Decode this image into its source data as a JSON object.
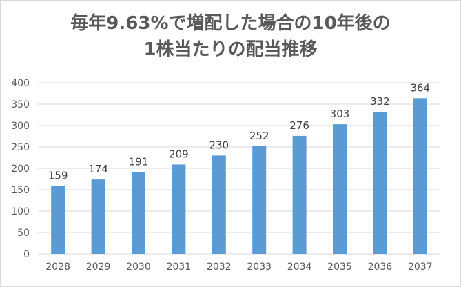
{
  "chart_data": {
    "type": "bar",
    "title_lines": [
      "毎年9.63%で増配した場合の10年後の",
      "1株当たりの配当推移"
    ],
    "categories": [
      "2028",
      "2029",
      "2030",
      "2031",
      "2032",
      "2033",
      "2034",
      "2035",
      "2036",
      "2037"
    ],
    "values": [
      159,
      174,
      191,
      209,
      230,
      252,
      276,
      303,
      332,
      364
    ],
    "data_labels": [
      "159",
      "174",
      "191",
      "209",
      "230",
      "252",
      "276",
      "303",
      "332",
      "364"
    ],
    "y_ticks": [
      "0",
      "50",
      "100",
      "150",
      "200",
      "250",
      "300",
      "350",
      "400"
    ],
    "ylim": [
      0,
      400
    ],
    "grid": true,
    "legend": "none",
    "bar_color": "#5b9bd5",
    "grid_color": "#d9d9d9"
  }
}
